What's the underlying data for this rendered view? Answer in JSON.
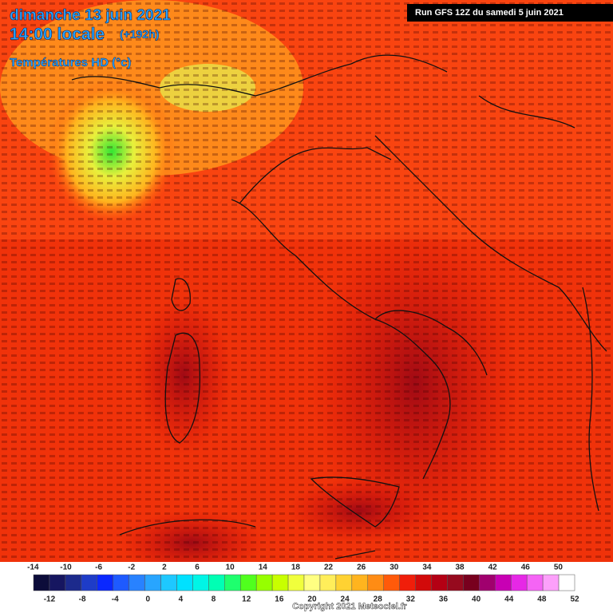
{
  "header": {
    "date": "dimanche 13 juin 2021",
    "time": "14:00 locale",
    "lead": "(+192h)",
    "variable": "Températures HD (°c)",
    "run": "Run GFS 12Z du samedi 5 juin 2021"
  },
  "legend": {
    "colors": [
      "#0c0c3a",
      "#161660",
      "#1c2a8c",
      "#1e3cc8",
      "#0a28ff",
      "#1e5aff",
      "#2882ff",
      "#28a5ff",
      "#1ec8ff",
      "#00e1ff",
      "#00f5e6",
      "#00ffb4",
      "#1eff6e",
      "#50ff1e",
      "#96ff00",
      "#c8ff00",
      "#f0ff3c",
      "#ffff82",
      "#ffee5a",
      "#ffd232",
      "#ffb41e",
      "#ff8c14",
      "#ff5a0a",
      "#f01e0a",
      "#d20a0a",
      "#b40014",
      "#960a1e",
      "#78001e",
      "#a0006e",
      "#c800b4",
      "#e628e6",
      "#f564f5",
      "#fca0fa",
      "#ffffff"
    ],
    "top_labels": [
      -14,
      -10,
      -6,
      -2,
      2,
      6,
      10,
      14,
      18,
      22,
      26,
      30,
      34,
      38,
      42,
      46,
      50
    ],
    "bottom_labels": [
      -12,
      -8,
      -4,
      0,
      4,
      8,
      12,
      16,
      20,
      24,
      28,
      32,
      36,
      40,
      44,
      48,
      52
    ]
  },
  "copyright": "Copyright 2021 Meteociel.fr"
}
